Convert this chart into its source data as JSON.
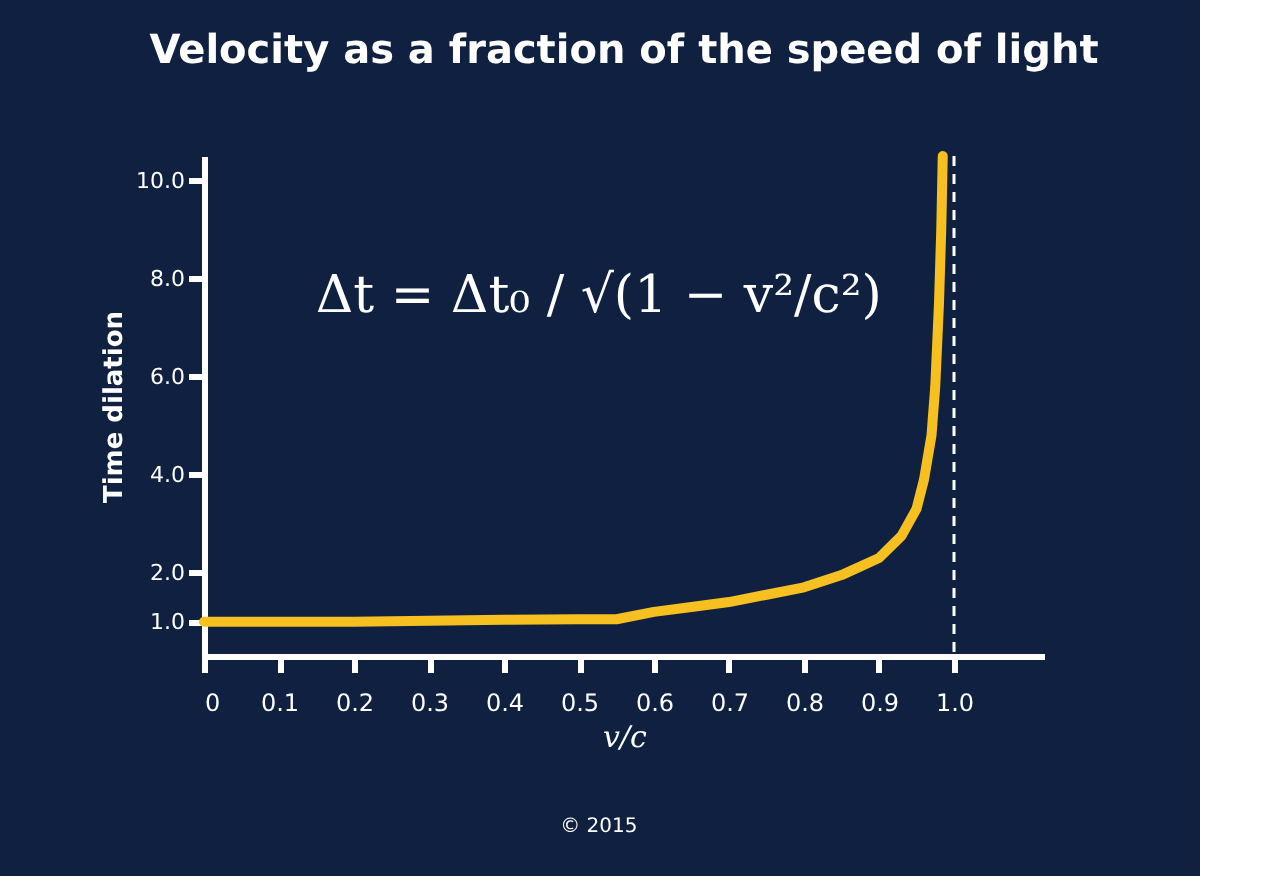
{
  "chart_data": {
    "type": "line",
    "title": "Velocity as a fraction of the speed of light",
    "xlabel": "v/c",
    "ylabel": "Time dilation",
    "x": [
      0,
      0.1,
      0.2,
      0.3,
      0.4,
      0.5,
      0.55,
      0.6,
      0.65,
      0.7,
      0.75,
      0.8,
      0.85,
      0.9,
      0.93,
      0.95,
      0.96,
      0.97,
      0.975,
      0.98,
      0.983,
      0.985
    ],
    "series": [
      {
        "color": "#f5c020",
        "values": [
          1.0,
          1.0,
          1.0,
          1.02,
          1.04,
          1.05,
          1.05,
          1.2,
          1.3,
          1.4,
          1.55,
          1.7,
          1.95,
          2.3,
          2.75,
          3.3,
          3.9,
          4.8,
          5.8,
          7.5,
          9.0,
          10.5
        ]
      }
    ],
    "xlim": [
      0,
      1.12
    ],
    "ylim": [
      0.3,
      10.5
    ],
    "xticks": [
      0,
      0.1,
      0.2,
      0.3,
      0.4,
      0.5,
      0.6,
      0.7,
      0.8,
      0.9,
      {
        "value": 1,
        "label": "1.0"
      }
    ],
    "yticks": [
      {
        "value": 1,
        "label": "1.0"
      },
      {
        "value": 2,
        "label": "2.0"
      },
      {
        "value": 4,
        "label": "4.0"
      },
      {
        "value": 6,
        "label": "6.0"
      },
      {
        "value": 8,
        "label": "8.0"
      },
      {
        "value": 10,
        "label": "10.0"
      }
    ],
    "ref_lines": [
      {
        "axis": "x",
        "value": 1,
        "color": "#ffffff",
        "line_style": "dashed"
      }
    ],
    "annotations": [
      "Δt = Δt₀ / √(1 − v²/c²)",
      "© 2015"
    ],
    "grid": false,
    "marker": "none",
    "line_style": "solid"
  }
}
